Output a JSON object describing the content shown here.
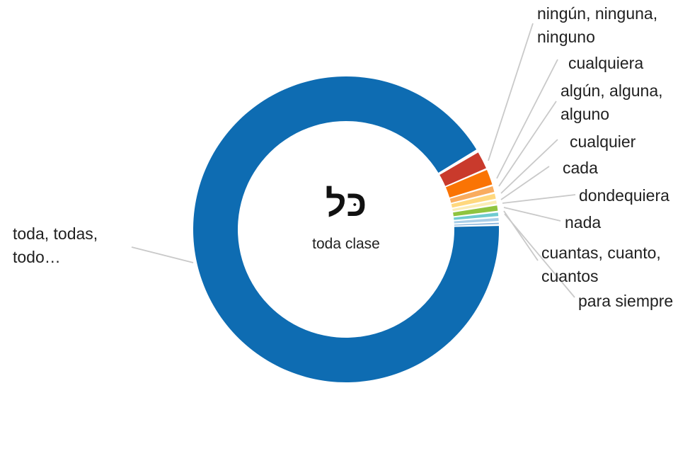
{
  "chart_data": {
    "type": "pie",
    "subtype": "donut",
    "title": "",
    "center": {
      "word": "כּל",
      "gloss": "toda clase"
    },
    "donut_hole_ratio": 0.71,
    "legend_position": "none",
    "grid": false,
    "leader_line_color": "#C9C9C9",
    "segments": [
      {
        "label": "toda, todas,\ntodo…",
        "color": "#0E6CB2",
        "span_deg": 329.8
      },
      {
        "label": "ningún, ninguna,\nninguno",
        "color": "#C93A2C",
        "span_deg": 6.6
      },
      {
        "label": "cualquiera",
        "color": "#FA7404",
        "span_deg": 5.8
      },
      {
        "label": "algún, alguna,\nalguno",
        "color": "#F9AC5F",
        "span_deg": 2.2
      },
      {
        "label": "cualquier",
        "color": "#FFD87E",
        "span_deg": 1.9
      },
      {
        "label": "cada",
        "color": "#FBEDB6",
        "span_deg": 1.2
      },
      {
        "label": "dondequiera",
        "color": "#8FC43F",
        "span_deg": 2.0
      },
      {
        "label": "nada",
        "color": "#6FCBD0",
        "span_deg": 1.3
      },
      {
        "label": "cuantas, cuanto,\ncuantos",
        "color": "#A9CEE8",
        "span_deg": 1.1
      },
      {
        "label": "para siempre",
        "color": "#88B4DC",
        "span_deg": 0.5
      }
    ]
  }
}
